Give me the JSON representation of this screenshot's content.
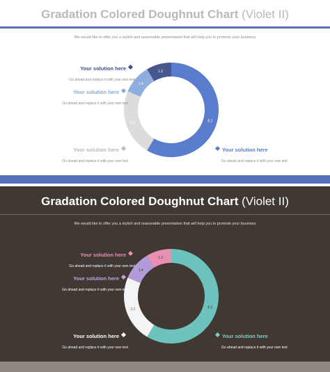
{
  "slides": [
    {
      "title_main": "Gradation Colored Doughnut Chart ",
      "title_suffix": "(Violet II)",
      "subtitle": "We would like to offer you a stylish and reasonable presentation that will help you to promote your business",
      "labels": [
        {
          "head": "Your solution here",
          "desc": "Go ahead and replace it with your own text",
          "color": "#3d4f8a"
        },
        {
          "head": "Your solution here",
          "desc": "Go ahead and replace it with your own text",
          "color": "#8aa6da"
        },
        {
          "head": "Your solution here",
          "desc": "Go ahead and replace it with your own text",
          "color": "#b8b8b8"
        },
        {
          "head": "Your solution here",
          "desc": "Go ahead and replace it with your own text",
          "color": "#5a7ccd"
        }
      ]
    },
    {
      "title_main": "Gradation Colored Doughnut Chart ",
      "title_suffix": "(Violet II)",
      "subtitle": "We would like to offer you a stylish and reasonable presentation that will help you to promote your business",
      "labels": [
        {
          "head": "Your solution here",
          "desc": "Go ahead and replace it with your own text",
          "color": "#e98fb1"
        },
        {
          "head": "Your solution here",
          "desc": "Go ahead and replace it with your own text",
          "color": "#c3a3e0"
        },
        {
          "head": "Your solution here",
          "desc": "Go ahead and replace it with your own text",
          "color": "#ffffff"
        },
        {
          "head": "Your solution here",
          "desc": "Go ahead and replace it with your own text",
          "color": "#7ecfca"
        }
      ]
    }
  ],
  "chart_data": [
    {
      "type": "pie",
      "categories": [
        "1.2",
        "1.4",
        "3.2",
        "8.2"
      ],
      "values": [
        1.2,
        1.4,
        3.2,
        8.2
      ],
      "colors": [
        "#46578e",
        "#8eaedf",
        "#dcdcdc",
        "#5a7ccd"
      ],
      "label_color": "#ffffff"
    },
    {
      "type": "pie",
      "categories": [
        "1.2",
        "1.4",
        "3.2",
        "8.2"
      ],
      "values": [
        1.2,
        1.4,
        3.2,
        8.2
      ],
      "colors": [
        "#ea8fb3",
        "#b39ad9",
        "#f4f4f4",
        "#6ec2bd"
      ],
      "label_color": "#3f3833"
    }
  ]
}
